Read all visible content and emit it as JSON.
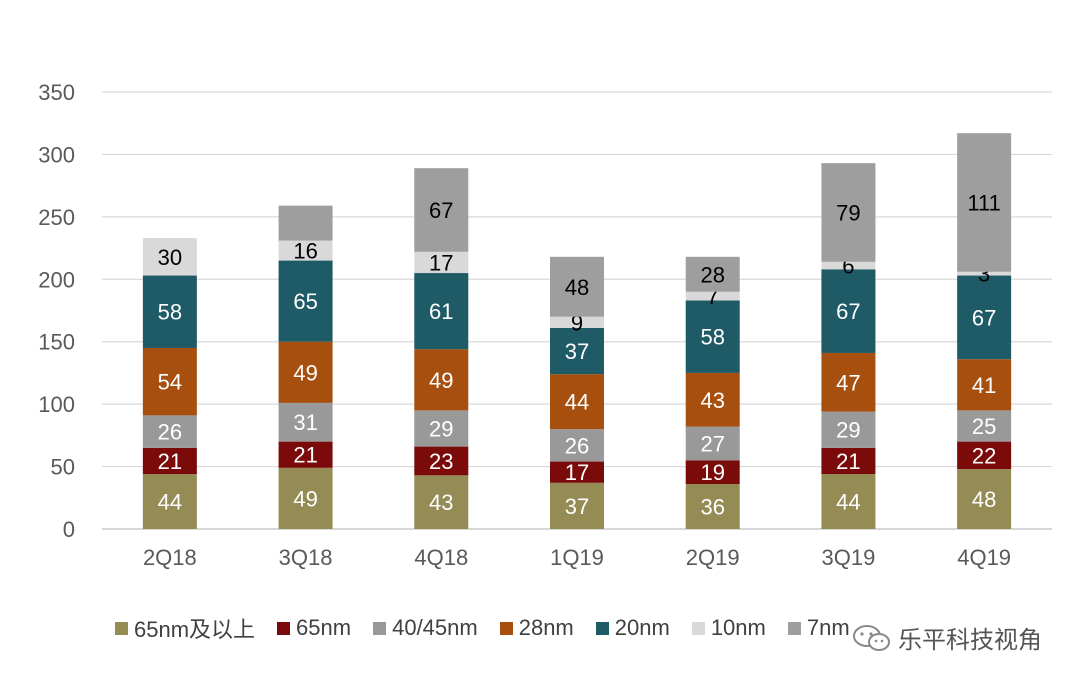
{
  "chart_data": {
    "type": "bar",
    "stacked": true,
    "categories": [
      "2Q18",
      "3Q18",
      "4Q18",
      "1Q19",
      "2Q19",
      "3Q19",
      "4Q19"
    ],
    "ylim": [
      0,
      350
    ],
    "yticks": [
      0,
      50,
      100,
      150,
      200,
      250,
      300,
      350
    ],
    "grid": true,
    "legend_position": "bottom",
    "series": [
      {
        "name": "65nm及以上",
        "color": "#948b55",
        "values": [
          44,
          49,
          43,
          37,
          36,
          44,
          48
        ]
      },
      {
        "name": "65nm",
        "color": "#7b0a0a",
        "values": [
          21,
          21,
          23,
          17,
          19,
          21,
          22
        ]
      },
      {
        "name": "40/45nm",
        "color": "#999999",
        "values": [
          26,
          31,
          29,
          26,
          27,
          29,
          25
        ]
      },
      {
        "name": "28nm",
        "color": "#a64f0e",
        "values": [
          54,
          49,
          49,
          44,
          43,
          47,
          41
        ]
      },
      {
        "name": "20nm",
        "color": "#1f5a67",
        "values": [
          58,
          65,
          61,
          37,
          58,
          67,
          67
        ]
      },
      {
        "name": "10nm",
        "color": "#d9d9d9",
        "values": [
          30,
          16,
          17,
          9,
          7,
          6,
          3
        ]
      },
      {
        "name": "7nm",
        "color": "#9e9e9e",
        "values": [
          0,
          28,
          67,
          48,
          28,
          79,
          111
        ]
      }
    ],
    "labels": [
      [
        "44",
        "21",
        "26",
        "54",
        "58",
        "30",
        ""
      ],
      [
        "49",
        "21",
        "31",
        "49",
        "65",
        "16",
        ""
      ],
      [
        "43",
        "23",
        "29",
        "49",
        "61",
        "17",
        "67"
      ],
      [
        "37",
        "17",
        "26",
        "44",
        "37",
        "9",
        "48"
      ],
      [
        "36",
        "19",
        "27",
        "43",
        "58",
        "7",
        "28"
      ],
      [
        "44",
        "21",
        "29",
        "47",
        "67",
        "6",
        "79"
      ],
      [
        "48",
        "22",
        "25",
        "41",
        "67",
        "3",
        "111"
      ]
    ],
    "label_colors": [
      "#ffffff",
      "#ffffff",
      "#ffffff",
      "#ffffff",
      "#ffffff",
      "#000000",
      "#000000"
    ]
  },
  "watermark": "乐平科技视角"
}
